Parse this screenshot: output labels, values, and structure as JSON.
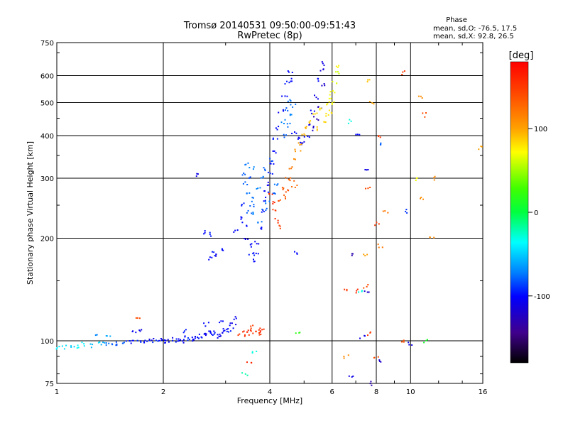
{
  "chart_data": {
    "type": "scatter",
    "title": "Tromsø 20140531 09:50:00-09:51:43",
    "subtitle": "RwPretec (8p)",
    "phase_box": {
      "heading": "Phase",
      "line_o": "mean, sd,O: -76.5, 17.5",
      "line_x": "mean, sd,X:  92.8, 26.5"
    },
    "xlabel": "Frequency [MHz]",
    "ylabel": "Stationary phase Virtual Height [km]",
    "x_scale": "log",
    "y_scale": "log",
    "xlim": [
      1,
      16
    ],
    "ylim": [
      75,
      750
    ],
    "x_ticks": [
      1,
      2,
      4,
      6,
      8,
      10,
      16
    ],
    "x_tick_labels": [
      "1",
      "2",
      "4",
      "6",
      "8",
      "10",
      "16"
    ],
    "y_ticks": [
      75,
      100,
      200,
      300,
      400,
      500,
      600,
      750
    ],
    "y_tick_labels": [
      "75",
      "100",
      "200",
      "300",
      "400",
      "500",
      "600",
      "750"
    ],
    "grid": true,
    "colorbar": {
      "label": "[deg]",
      "range": [
        -180,
        180
      ],
      "ticks": [
        100,
        0,
        -100
      ],
      "tick_labels": [
        "100",
        "0",
        "-100"
      ]
    },
    "series": [
      {
        "points": [
          [
            1.0,
            95,
            -40
          ],
          [
            1.05,
            96,
            -45
          ],
          [
            1.1,
            97,
            -50
          ],
          [
            1.15,
            96,
            -35
          ],
          [
            1.2,
            98,
            -40
          ],
          [
            1.25,
            97,
            -55
          ],
          [
            1.3,
            99,
            -45
          ],
          [
            1.35,
            98,
            -60
          ],
          [
            1.4,
            98,
            -75
          ],
          [
            1.45,
            97,
            -80
          ],
          [
            1.5,
            98,
            -85
          ],
          [
            1.55,
            98,
            -80
          ],
          [
            1.6,
            99,
            -95
          ],
          [
            1.65,
            99,
            -100
          ],
          [
            1.7,
            100,
            -90
          ],
          [
            1.75,
            100,
            -100
          ],
          [
            1.8,
            99,
            -95
          ],
          [
            1.85,
            101,
            -110
          ],
          [
            1.9,
            99,
            -90
          ],
          [
            1.95,
            100,
            -100
          ],
          [
            2.0,
            100,
            -105
          ],
          [
            2.05,
            100,
            -100
          ],
          [
            2.1,
            101,
            -110
          ],
          [
            2.15,
            100,
            -95
          ],
          [
            2.2,
            101,
            -100
          ],
          [
            2.25,
            100,
            -105
          ],
          [
            2.3,
            102,
            -100
          ],
          [
            2.35,
            101,
            -90
          ],
          [
            2.4,
            101,
            -100
          ],
          [
            2.45,
            102,
            -110
          ],
          [
            2.5,
            103,
            -100
          ],
          [
            2.55,
            102,
            -95
          ],
          [
            2.6,
            104,
            -100
          ],
          [
            2.65,
            105,
            -110
          ],
          [
            2.7,
            106,
            -100
          ],
          [
            2.75,
            107,
            -100
          ],
          [
            2.8,
            105,
            -95
          ],
          [
            2.85,
            103,
            -100
          ],
          [
            2.9,
            104,
            -110
          ],
          [
            2.95,
            106,
            -105
          ],
          [
            3.0,
            108,
            -100
          ],
          [
            3.05,
            107,
            -95
          ],
          [
            3.1,
            110,
            -100
          ],
          [
            3.15,
            113,
            -110
          ],
          [
            3.2,
            116,
            -105
          ],
          [
            1.3,
            104,
            -70
          ],
          [
            1.4,
            103,
            -60
          ],
          [
            1.65,
            106,
            -105
          ],
          [
            1.72,
            108,
            -110
          ],
          [
            2.65,
            112,
            -100
          ],
          [
            2.3,
            107,
            -95
          ],
          [
            2.9,
            114,
            -100
          ],
          [
            3.3,
            105,
            150
          ],
          [
            3.4,
            107,
            160
          ],
          [
            3.5,
            108,
            155
          ],
          [
            3.6,
            106,
            150
          ],
          [
            3.7,
            107,
            160
          ],
          [
            3.8,
            108,
            155
          ],
          [
            3.75,
            105,
            150
          ],
          [
            3.55,
            110,
            145
          ],
          [
            3.45,
            104,
            155
          ],
          [
            1.7,
            118,
            140
          ],
          [
            2.7,
            175,
            -100
          ],
          [
            2.8,
            180,
            -95
          ],
          [
            2.9,
            185,
            -100
          ],
          [
            2.85,
            178,
            -110
          ],
          [
            2.6,
            208,
            -100
          ],
          [
            2.7,
            205,
            -95
          ],
          [
            3.2,
            210,
            -100
          ],
          [
            3.3,
            230,
            -100
          ],
          [
            3.35,
            250,
            -95
          ],
          [
            3.4,
            220,
            -100
          ],
          [
            3.45,
            200,
            -110
          ],
          [
            3.5,
            190,
            -100
          ],
          [
            3.55,
            180,
            -95
          ],
          [
            3.6,
            172,
            -100
          ],
          [
            3.65,
            180,
            -100
          ],
          [
            3.7,
            195,
            -105
          ],
          [
            3.75,
            215,
            -100
          ],
          [
            3.8,
            240,
            -95
          ],
          [
            3.85,
            260,
            -100
          ],
          [
            3.9,
            275,
            -100
          ],
          [
            3.95,
            290,
            -105
          ],
          [
            4.0,
            310,
            -95
          ],
          [
            4.05,
            335,
            -100
          ],
          [
            4.1,
            360,
            -100
          ],
          [
            4.15,
            390,
            -95
          ],
          [
            4.2,
            420,
            -100
          ],
          [
            4.3,
            470,
            -105
          ],
          [
            4.4,
            520,
            -100
          ],
          [
            4.5,
            570,
            -95
          ],
          [
            4.55,
            620,
            -100
          ],
          [
            4.6,
            580,
            -100
          ],
          [
            3.5,
            240,
            -80
          ],
          [
            3.6,
            260,
            -75
          ],
          [
            3.7,
            280,
            -70
          ],
          [
            3.8,
            300,
            -75
          ],
          [
            3.9,
            320,
            -80
          ],
          [
            4.0,
            340,
            -85
          ],
          [
            3.55,
            250,
            -80
          ],
          [
            3.45,
            270,
            -75
          ],
          [
            3.4,
            290,
            -80
          ],
          [
            3.5,
            300,
            -85
          ],
          [
            3.65,
            235,
            -70
          ],
          [
            3.75,
            225,
            -75
          ],
          [
            3.85,
            245,
            -80
          ],
          [
            3.95,
            255,
            -75
          ],
          [
            4.1,
            270,
            -80
          ],
          [
            4.2,
            290,
            -75
          ],
          [
            3.35,
            310,
            -80
          ],
          [
            3.45,
            330,
            -75
          ],
          [
            3.55,
            320,
            -70
          ],
          [
            4.4,
            400,
            -80
          ],
          [
            4.5,
            430,
            -75
          ],
          [
            4.6,
            460,
            -70
          ],
          [
            4.45,
            480,
            -80
          ],
          [
            4.55,
            510,
            -75
          ],
          [
            4.35,
            440,
            -70
          ],
          [
            4.65,
            490,
            -75
          ],
          [
            4.7,
            410,
            -100
          ],
          [
            4.8,
            390,
            -105
          ],
          [
            4.9,
            380,
            -100
          ],
          [
            5.0,
            385,
            -110
          ],
          [
            5.1,
            400,
            -100
          ],
          [
            5.2,
            430,
            -105
          ],
          [
            5.3,
            470,
            -100
          ],
          [
            5.4,
            520,
            -110
          ],
          [
            5.5,
            580,
            -100
          ],
          [
            5.6,
            650,
            -110
          ],
          [
            5.65,
            620,
            -115
          ],
          [
            5.7,
            560,
            -120
          ],
          [
            5.5,
            480,
            -125
          ],
          [
            5.4,
            450,
            -130
          ],
          [
            5.3,
            420,
            -120
          ],
          [
            4.0,
            270,
            160
          ],
          [
            4.1,
            240,
            150
          ],
          [
            4.2,
            225,
            155
          ],
          [
            4.15,
            255,
            160
          ],
          [
            4.25,
            215,
            145
          ],
          [
            4.3,
            260,
            140
          ],
          [
            4.4,
            280,
            135
          ],
          [
            4.5,
            300,
            125
          ],
          [
            4.6,
            320,
            120
          ],
          [
            4.7,
            340,
            110
          ],
          [
            4.8,
            360,
            105
          ],
          [
            4.9,
            380,
            100
          ],
          [
            5.0,
            400,
            95
          ],
          [
            5.1,
            420,
            95
          ],
          [
            5.2,
            440,
            90
          ],
          [
            5.4,
            460,
            85
          ],
          [
            5.6,
            480,
            80
          ],
          [
            5.8,
            500,
            75
          ],
          [
            5.9,
            520,
            70
          ],
          [
            6.0,
            540,
            70
          ],
          [
            6.1,
            570,
            65
          ],
          [
            6.2,
            610,
            60
          ],
          [
            6.15,
            640,
            75
          ],
          [
            5.95,
            470,
            80
          ],
          [
            5.7,
            440,
            85
          ],
          [
            5.5,
            420,
            90
          ],
          [
            6.05,
            500,
            70
          ],
          [
            5.85,
            460,
            80
          ],
          [
            4.6,
            295,
            130
          ],
          [
            4.7,
            285,
            125
          ],
          [
            4.5,
            275,
            140
          ],
          [
            4.45,
            265,
            135
          ],
          [
            6.8,
            440,
            -30
          ],
          [
            7.1,
            400,
            -100
          ],
          [
            7.5,
            315,
            -110
          ],
          [
            7.6,
            580,
            90
          ],
          [
            7.8,
            500,
            100
          ],
          [
            8.2,
            400,
            150
          ],
          [
            8.2,
            380,
            -80
          ],
          [
            8.5,
            240,
            120
          ],
          [
            7.6,
            280,
            140
          ],
          [
            8.0,
            220,
            150
          ],
          [
            8.2,
            190,
            120
          ],
          [
            7.5,
            180,
            100
          ],
          [
            6.8,
            180,
            -130
          ],
          [
            7.5,
            145,
            140
          ],
          [
            7.0,
            140,
            160
          ],
          [
            6.5,
            140,
            150
          ],
          [
            7.2,
            140,
            -30
          ],
          [
            7.5,
            140,
            -120
          ],
          [
            8.0,
            90,
            140
          ],
          [
            8.1,
            88,
            -120
          ],
          [
            7.8,
            75,
            -130
          ],
          [
            6.6,
            90,
            110
          ],
          [
            6.8,
            78,
            -110
          ],
          [
            9.5,
            100,
            140
          ],
          [
            9.9,
            98,
            -110
          ],
          [
            9.6,
            610,
            150
          ],
          [
            10.6,
            520,
            110
          ],
          [
            11.0,
            460,
            140
          ],
          [
            10.4,
            300,
            70
          ],
          [
            11.5,
            300,
            110
          ],
          [
            10.8,
            260,
            110
          ],
          [
            9.6,
            240,
            -90
          ],
          [
            11.5,
            200,
            110
          ],
          [
            11.0,
            100,
            10
          ],
          [
            15.8,
            370,
            100
          ],
          [
            7.7,
            105,
            150
          ],
          [
            7.3,
            103,
            -110
          ],
          [
            2.5,
            305,
            -110
          ],
          [
            3.4,
            80,
            -20
          ],
          [
            3.5,
            86,
            160
          ],
          [
            3.6,
            92,
            -30
          ],
          [
            4.8,
            105,
            20
          ],
          [
            4.7,
            180,
            -100
          ]
        ]
      }
    ]
  }
}
